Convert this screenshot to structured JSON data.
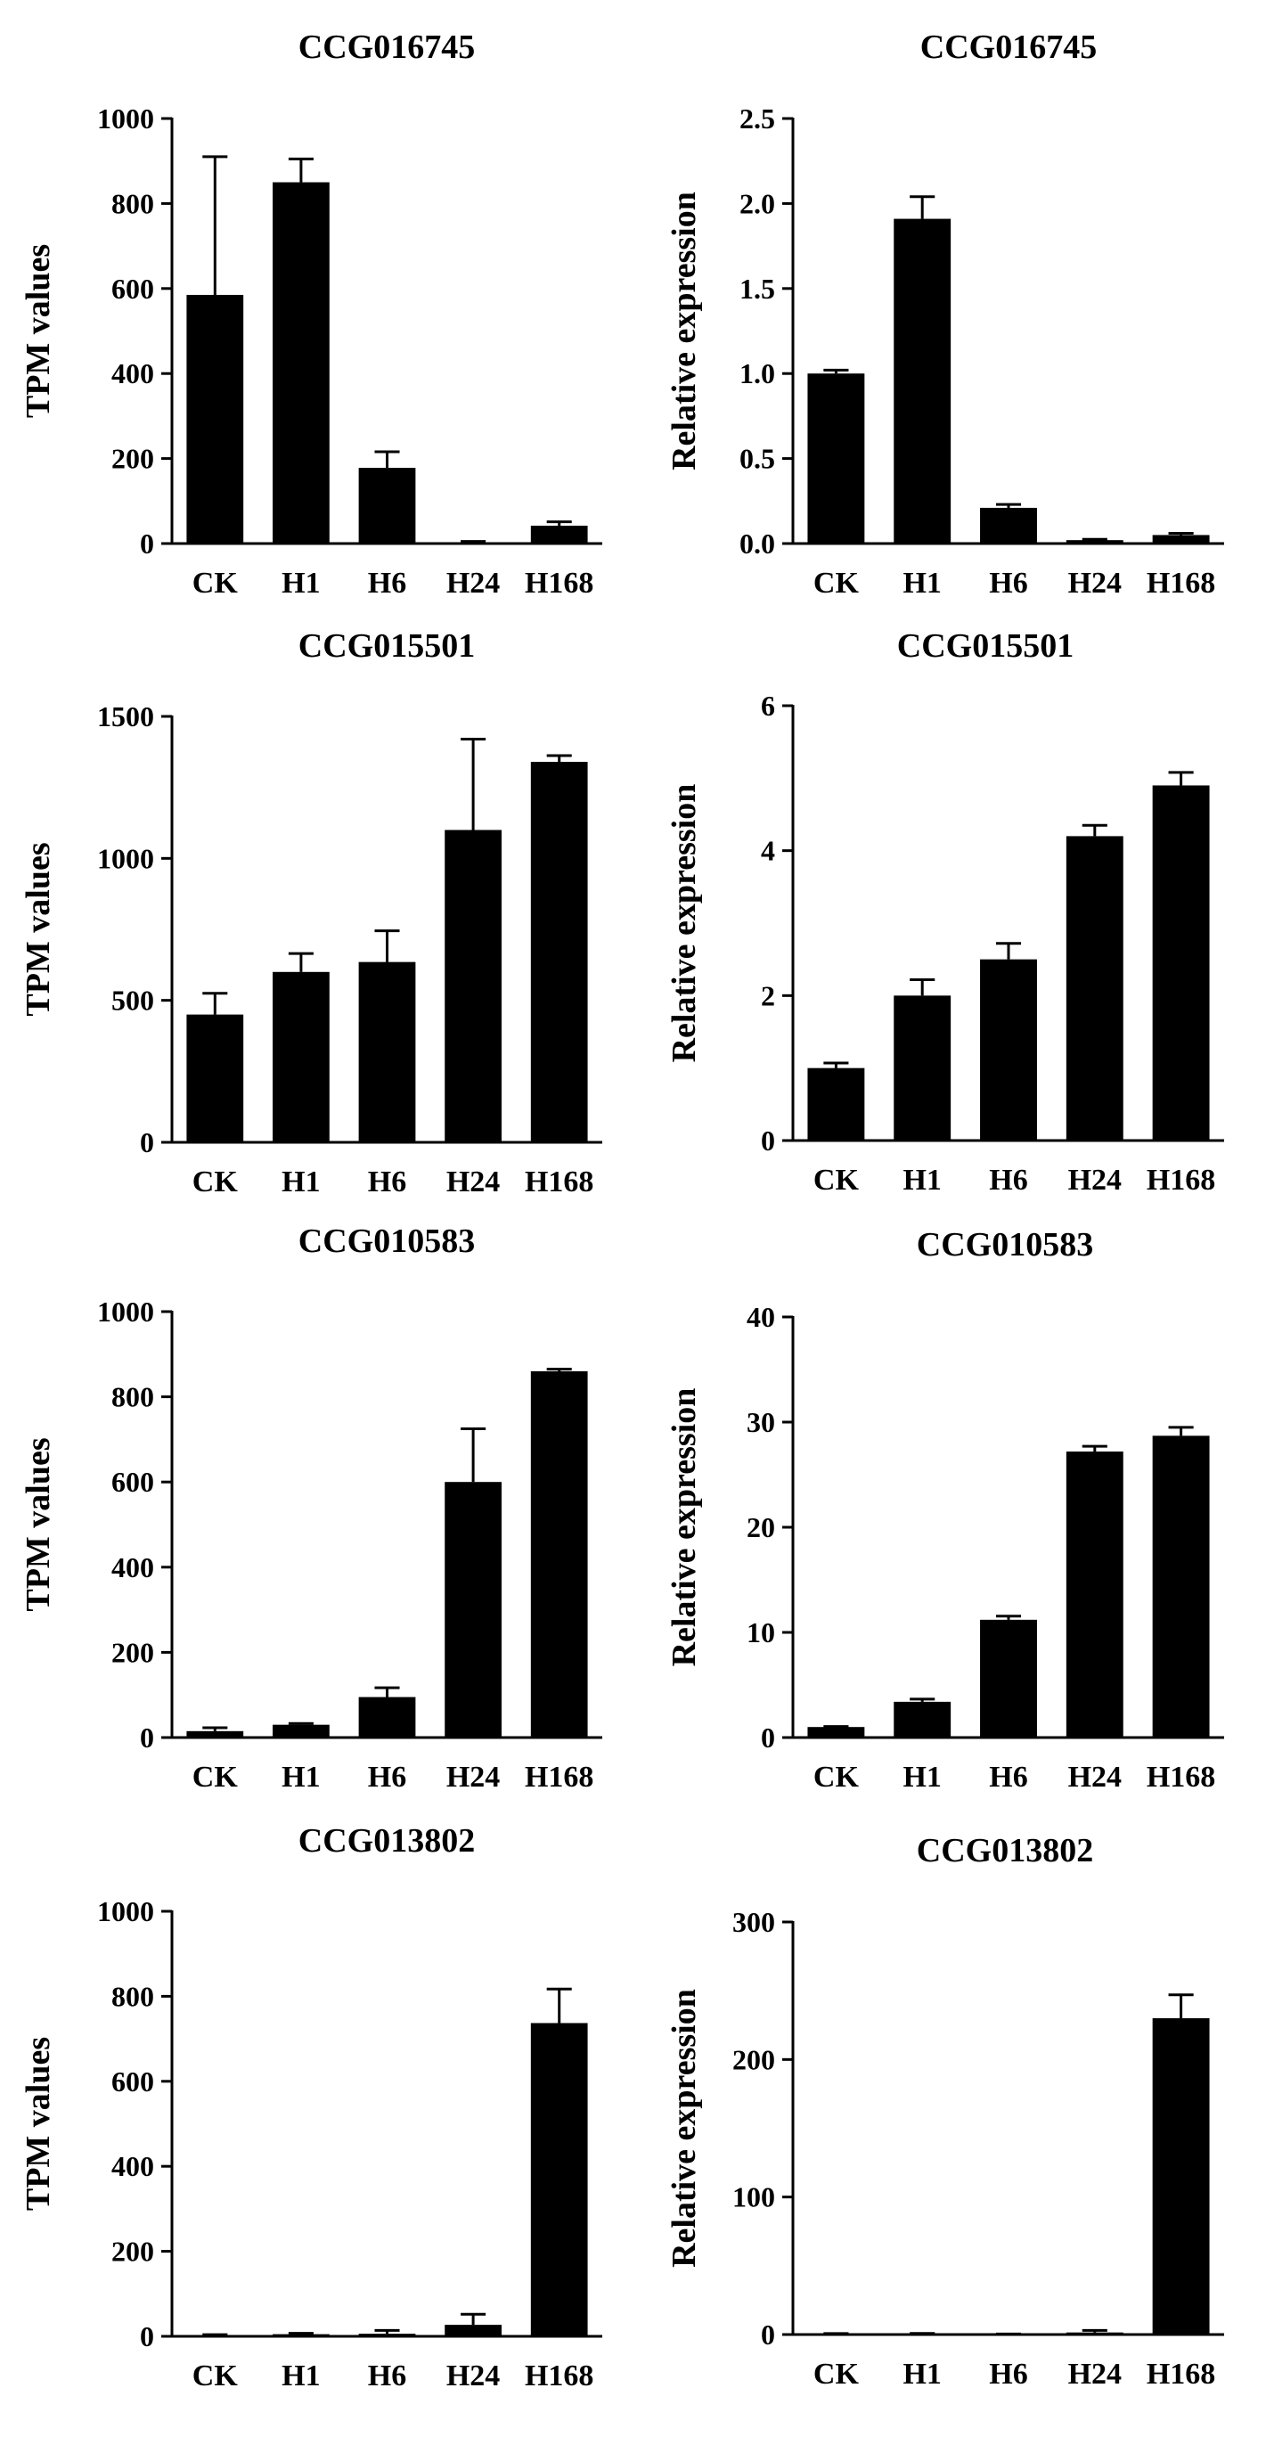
{
  "chart_data": [
    {
      "type": "bar",
      "title": "CCG016745",
      "ylabel": "TPM values",
      "xlabel": "",
      "categories": [
        "CK",
        "H1",
        "H6",
        "H24",
        "H168"
      ],
      "values": [
        585,
        850,
        178,
        3,
        42
      ],
      "errors": [
        325,
        55,
        38,
        2,
        9
      ],
      "ylim": [
        0,
        1000
      ],
      "yticks": [
        0,
        200,
        400,
        600,
        800,
        1000
      ],
      "ytick_labels": [
        "0",
        "200",
        "400",
        "600",
        "800",
        "1000"
      ]
    },
    {
      "type": "bar",
      "title": "CCG016745",
      "ylabel": "Relative expression",
      "xlabel": "",
      "categories": [
        "CK",
        "H1",
        "H6",
        "H24",
        "H168"
      ],
      "values": [
        1.0,
        1.91,
        0.21,
        0.02,
        0.05
      ],
      "errors": [
        0.02,
        0.13,
        0.02,
        0.005,
        0.01
      ],
      "ylim": [
        0,
        2.5
      ],
      "yticks": [
        0,
        0.5,
        1,
        1.5,
        2,
        2.5
      ],
      "ytick_labels": [
        "0.0",
        "0.5",
        "1.0",
        "1.5",
        "2.0",
        "2.5"
      ]
    },
    {
      "type": "bar",
      "title": "CCG015501",
      "ylabel": "TPM values",
      "xlabel": "",
      "categories": [
        "CK",
        "H1",
        "H6",
        "H24",
        "H168"
      ],
      "values": [
        450,
        600,
        635,
        1100,
        1340
      ],
      "errors": [
        75,
        65,
        110,
        320,
        22
      ],
      "ylim": [
        0,
        1500
      ],
      "yticks": [
        0,
        500,
        1000,
        1500
      ],
      "ytick_labels": [
        "0",
        "500",
        "1000",
        "1500"
      ]
    },
    {
      "type": "bar",
      "title": "CCG015501",
      "ylabel": "Relative expression",
      "xlabel": "",
      "categories": [
        "CK",
        "H1",
        "H6",
        "H24",
        "H168"
      ],
      "values": [
        1.0,
        2.0,
        2.5,
        4.2,
        4.9
      ],
      "errors": [
        0.07,
        0.22,
        0.22,
        0.15,
        0.18
      ],
      "ylim": [
        0,
        6
      ],
      "yticks": [
        0,
        2,
        4,
        6
      ],
      "ytick_labels": [
        "0",
        "2",
        "4",
        "6"
      ]
    },
    {
      "type": "bar",
      "title": "CCG010583",
      "ylabel": "TPM values",
      "xlabel": "",
      "categories": [
        "CK",
        "H1",
        "H6",
        "H24",
        "H168"
      ],
      "values": [
        15,
        30,
        95,
        600,
        860
      ],
      "errors": [
        8,
        3,
        22,
        125,
        5
      ],
      "ylim": [
        0,
        1000
      ],
      "yticks": [
        0,
        200,
        400,
        600,
        800,
        1000
      ],
      "ytick_labels": [
        "0",
        "200",
        "400",
        "600",
        "800",
        "1000"
      ]
    },
    {
      "type": "bar",
      "title": "CCG010583",
      "ylabel": "Relative expression",
      "xlabel": "",
      "categories": [
        "CK",
        "H1",
        "H6",
        "H24",
        "H168"
      ],
      "values": [
        1.0,
        3.4,
        11.2,
        27.2,
        28.7
      ],
      "errors": [
        0.05,
        0.25,
        0.35,
        0.5,
        0.8
      ],
      "ylim": [
        0,
        40
      ],
      "yticks": [
        0,
        10,
        20,
        30,
        40
      ],
      "ytick_labels": [
        "0",
        "10",
        "20",
        "30",
        "40"
      ]
    },
    {
      "type": "bar",
      "title": "CCG013802",
      "ylabel": "TPM values",
      "xlabel": "",
      "categories": [
        "CK",
        "H1",
        "H6",
        "H24",
        "H168"
      ],
      "values": [
        3,
        5,
        6,
        27,
        737
      ],
      "errors": [
        1,
        2,
        8,
        25,
        80
      ],
      "ylim": [
        0,
        1000
      ],
      "yticks": [
        0,
        200,
        400,
        600,
        800,
        1000
      ],
      "ytick_labels": [
        "0",
        "200",
        "400",
        "600",
        "800",
        "1000"
      ]
    },
    {
      "type": "bar",
      "title": "CCG013802",
      "ylabel": "Relative expression",
      "xlabel": "",
      "categories": [
        "CK",
        "H1",
        "H6",
        "H24",
        "H168"
      ],
      "values": [
        0.5,
        0.6,
        0.3,
        1.5,
        230
      ],
      "errors": [
        0.2,
        0.2,
        0.1,
        1.5,
        17
      ],
      "ylim": [
        0,
        300
      ],
      "yticks": [
        0,
        100,
        200,
        300
      ],
      "ytick_labels": [
        "0",
        "100",
        "200",
        "300"
      ]
    }
  ]
}
